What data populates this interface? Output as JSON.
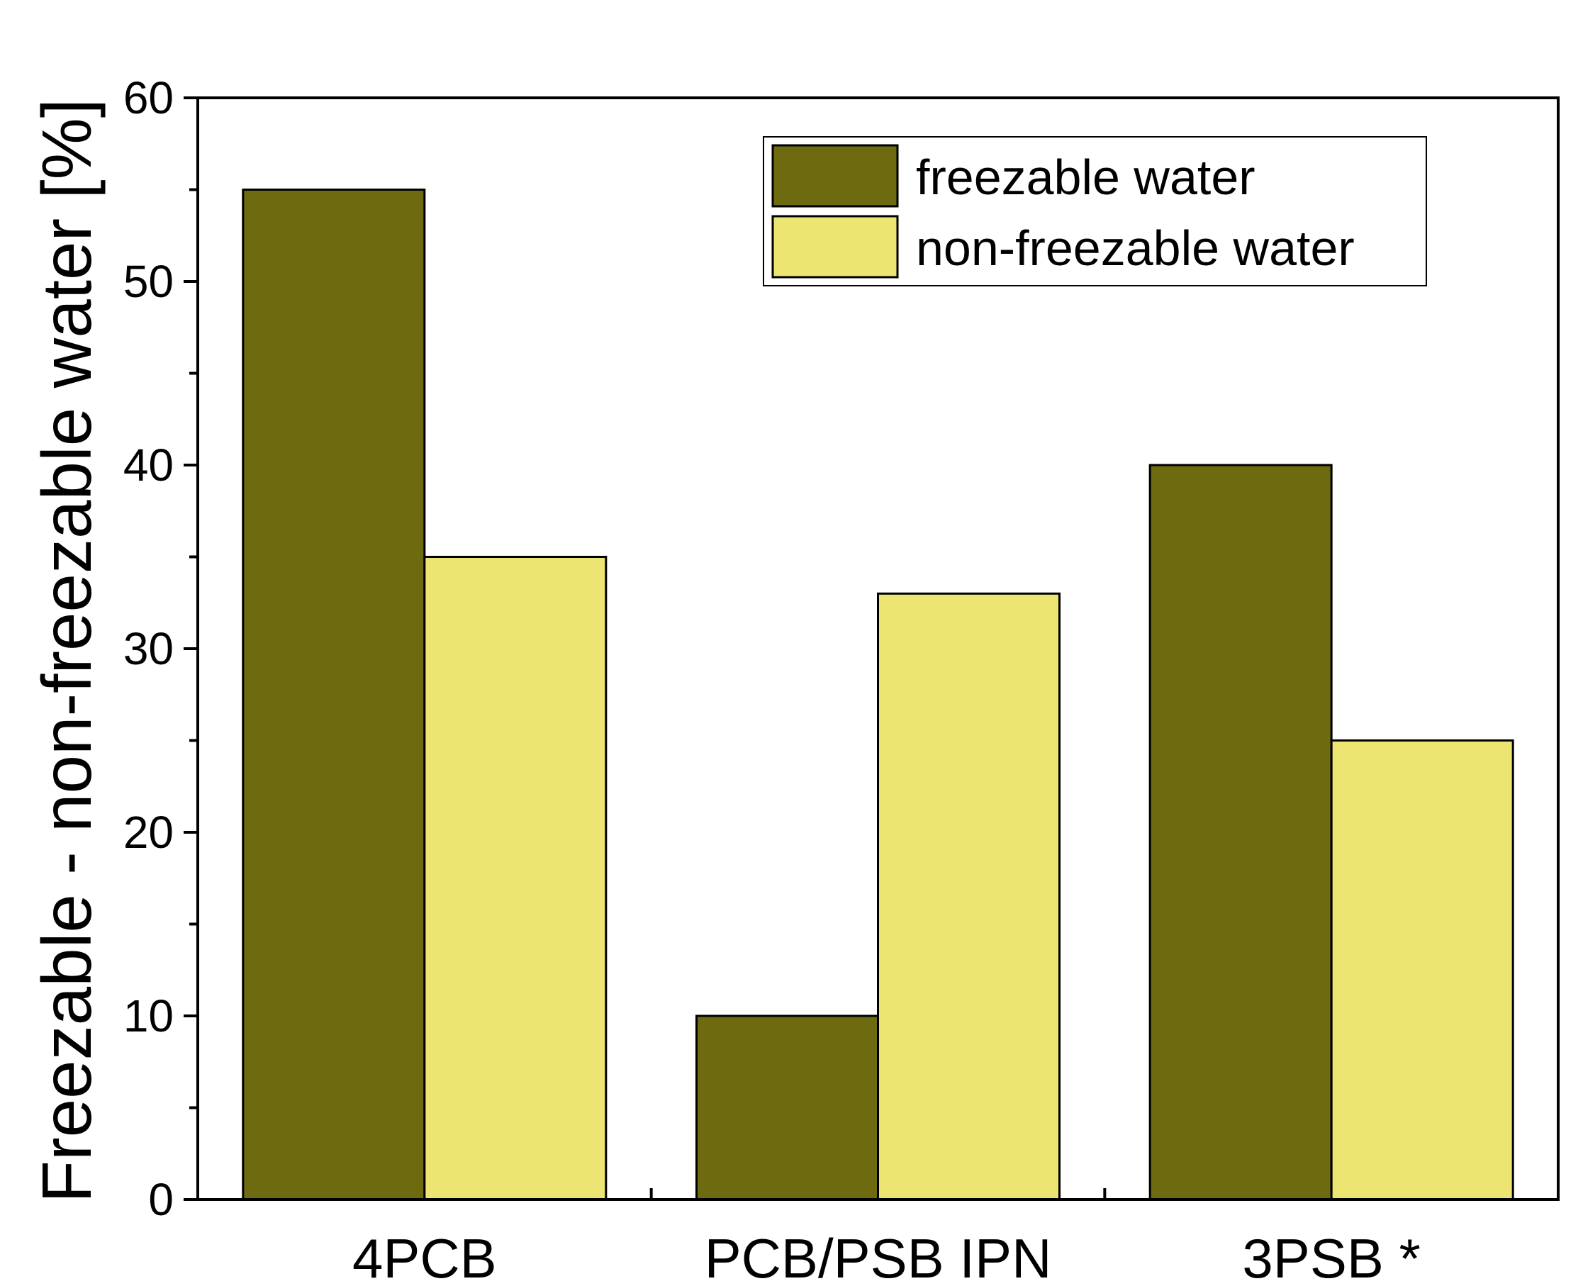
{
  "chart_data": {
    "type": "bar",
    "title": "",
    "xlabel": "",
    "ylabel": "Freezable - non-freezable water [%]",
    "ylim": [
      0,
      60
    ],
    "yticks": [
      0,
      10,
      20,
      30,
      40,
      50,
      60
    ],
    "categories": [
      "4PCB",
      "PCB/PSB IPN",
      "3PSB *"
    ],
    "series": [
      {
        "name": "freezable water",
        "color": "#6e6a10",
        "values": [
          55,
          10,
          40
        ]
      },
      {
        "name": "non-freezable water",
        "color": "#ede572",
        "values": [
          35,
          33,
          25
        ]
      }
    ],
    "legend": {
      "position": "top-right"
    },
    "grid": false
  }
}
